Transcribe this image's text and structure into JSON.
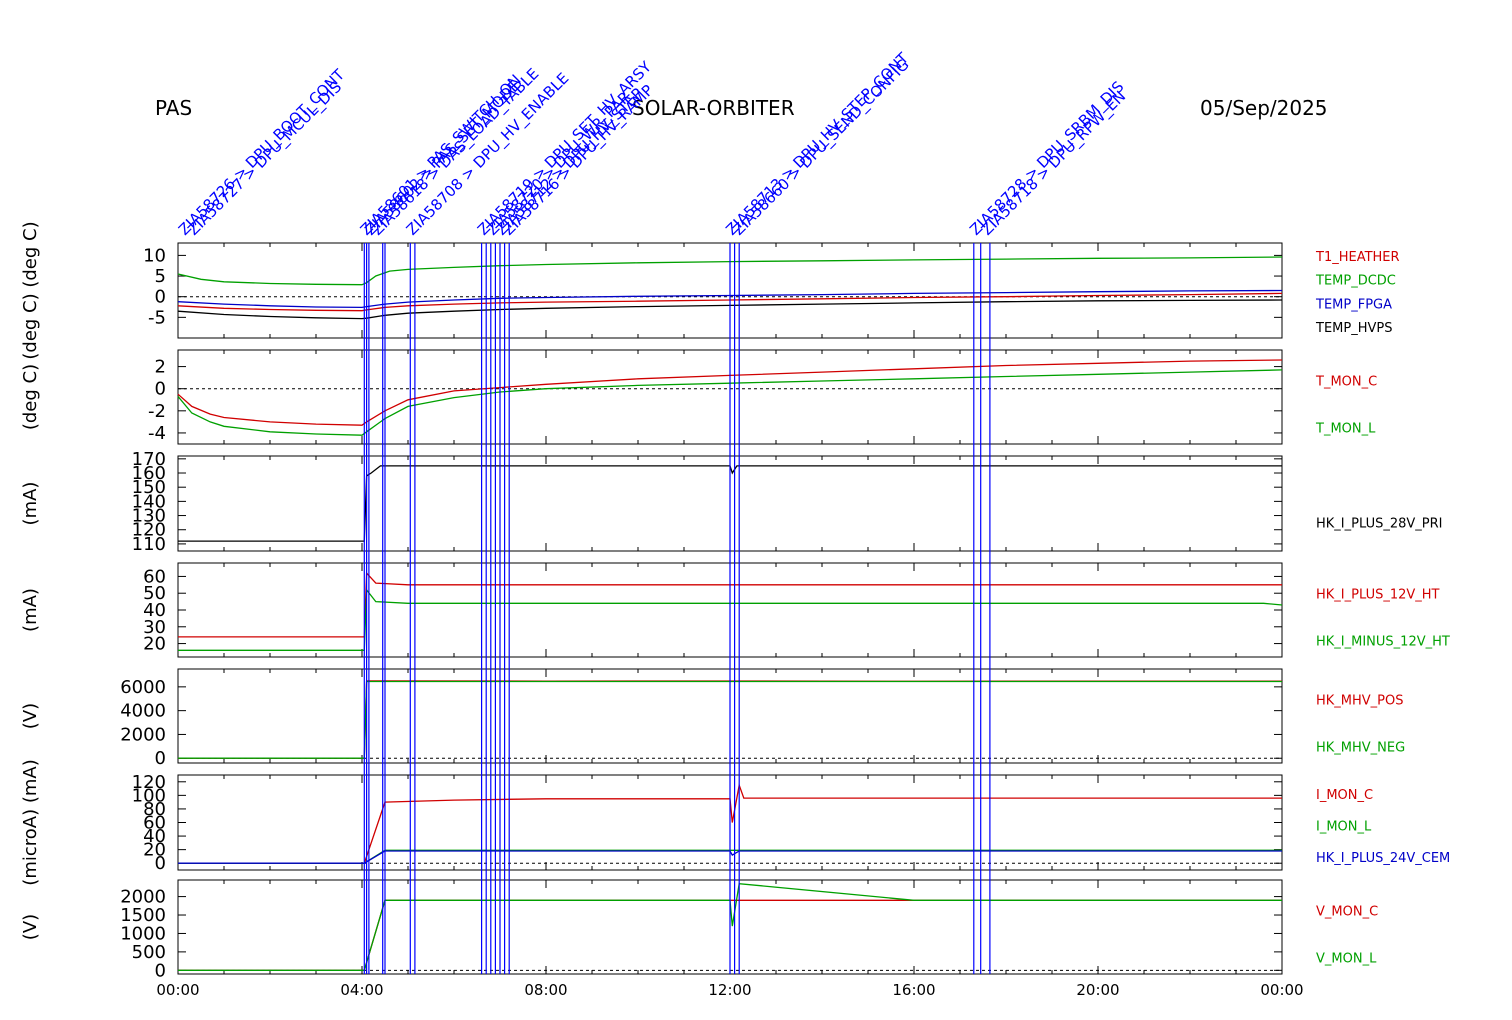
{
  "header": {
    "instrument": "PAS",
    "mission": "SOLAR-ORBITER",
    "date": "05/Sep/2025"
  },
  "colors": {
    "black": "#000000",
    "red": "#d00000",
    "green": "#00a000",
    "blue": "#0000c8",
    "event": "#0000ff"
  },
  "events": {
    "line_hours": [
      4.05,
      4.1,
      4.15,
      4.45,
      4.5,
      5.05,
      5.15,
      6.6,
      6.7,
      6.8,
      6.9,
      7.0,
      7.1,
      7.2,
      12.0,
      12.1,
      12.2,
      17.3,
      17.45,
      17.65
    ],
    "labels": [
      {
        "hour": 0.15,
        "text": "ZIA58726 > DPU_BOOT_CONT"
      },
      {
        "hour": 0.35,
        "text": "ZIA58727 > DPU_MCUL_DIS"
      },
      {
        "hour": 4.1,
        "text": "ZIA58601 > PAS_SWITCH_ON"
      },
      {
        "hour": 4.2,
        "text": "ZIA58602 > PAS_SET_MODE"
      },
      {
        "hour": 4.35,
        "text": "ZIA58618 > DAS_LOAD_TABLE"
      },
      {
        "hour": 5.1,
        "text": "ZIA58708 > DPU_HV_ENABLE"
      },
      {
        "hour": 6.65,
        "text": "ZIA58719 > DPU_SET_HV_ARSY"
      },
      {
        "hour": 6.85,
        "text": "ZIA58720 > DPU_WR_PAR"
      },
      {
        "hour": 7.05,
        "text": "ZIA58712 > DPU_HV_STEP"
      },
      {
        "hour": 7.2,
        "text": "ZIA58716 > DPU_HV_RAMP"
      },
      {
        "hour": 12.05,
        "text": "ZIA58713 > DPU_HV_STEP_CONT"
      },
      {
        "hour": 12.2,
        "text": "ZIA58660 > DPU_SEND_CONFIG"
      },
      {
        "hour": 17.35,
        "text": "ZIA58728 > DPU_SRBM_DIS"
      },
      {
        "hour": 17.6,
        "text": "ZIA58718 > DPU_RPW_EN"
      }
    ]
  },
  "x_axis": {
    "ticks": [
      "00:00",
      "04:00",
      "08:00",
      "12:00",
      "16:00",
      "20:00",
      "00:00"
    ]
  },
  "chart_data": [
    {
      "type": "line",
      "ylabel": "(deg C)  (deg C)",
      "ylim": [
        -10,
        13
      ],
      "yticks": [
        10,
        5,
        0,
        -5
      ],
      "zero_line": true,
      "x_range_hours": [
        0,
        24
      ],
      "series": [
        {
          "name": "T1_HEATHER",
          "color": "#d00000",
          "x": [
            0,
            1,
            2,
            3,
            4,
            4.1,
            4.5,
            5,
            6,
            7,
            8,
            10,
            12,
            14,
            16,
            18,
            20,
            22,
            24
          ],
          "y": [
            -2.2,
            -2.8,
            -3.1,
            -3.3,
            -3.4,
            -3.2,
            -2.6,
            -2.2,
            -1.8,
            -1.5,
            -1.3,
            -1.1,
            -0.8,
            -0.5,
            -0.2,
            0.0,
            0.3,
            0.5,
            0.8
          ]
        },
        {
          "name": "TEMP_DCDC",
          "color": "#00a000",
          "x": [
            0,
            0.5,
            1,
            2,
            3,
            4,
            4.1,
            4.3,
            4.6,
            5,
            6,
            7,
            8,
            10,
            12,
            14,
            16,
            18,
            20,
            22,
            24
          ],
          "y": [
            5.5,
            4.2,
            3.6,
            3.2,
            3.0,
            2.9,
            3.4,
            5.0,
            6.2,
            6.6,
            7.1,
            7.5,
            7.8,
            8.2,
            8.5,
            8.7,
            8.9,
            9.1,
            9.3,
            9.4,
            9.6
          ]
        },
        {
          "name": "TEMP_FPGA",
          "color": "#0000c8",
          "x": [
            0,
            1,
            2,
            3,
            4,
            4.1,
            4.5,
            5,
            6,
            7,
            8,
            10,
            12,
            14,
            16,
            18,
            20,
            22,
            24
          ],
          "y": [
            -1.2,
            -1.8,
            -2.2,
            -2.5,
            -2.6,
            -2.4,
            -1.8,
            -1.3,
            -0.8,
            -0.4,
            -0.2,
            0.1,
            0.3,
            0.5,
            0.8,
            1.0,
            1.2,
            1.4,
            1.5
          ]
        },
        {
          "name": "TEMP_HVPS",
          "color": "#000000",
          "x": [
            0,
            1,
            2,
            3,
            4,
            4.1,
            4.5,
            5,
            6,
            7,
            8,
            10,
            12,
            14,
            16,
            18,
            20,
            22,
            24
          ],
          "y": [
            -3.5,
            -4.3,
            -4.8,
            -5.1,
            -5.3,
            -5.2,
            -4.5,
            -4.0,
            -3.5,
            -3.1,
            -2.8,
            -2.4,
            -2.1,
            -1.8,
            -1.5,
            -1.2,
            -1.0,
            -0.9,
            -0.8
          ]
        }
      ]
    },
    {
      "type": "line",
      "ylabel": "(deg C)",
      "ylim": [
        -5,
        3.5
      ],
      "yticks": [
        2,
        0,
        -2,
        -4
      ],
      "zero_line": true,
      "x_range_hours": [
        0,
        24
      ],
      "series": [
        {
          "name": "T_MON_C",
          "color": "#d00000",
          "x": [
            0,
            0.3,
            0.7,
            1,
            2,
            3,
            4,
            4.1,
            4.5,
            5,
            6,
            7,
            8,
            10,
            12,
            14,
            16,
            18,
            20,
            22,
            24
          ],
          "y": [
            -0.5,
            -1.6,
            -2.3,
            -2.6,
            -3.0,
            -3.2,
            -3.3,
            -3.0,
            -2.0,
            -1.0,
            -0.2,
            0.1,
            0.4,
            0.9,
            1.2,
            1.5,
            1.8,
            2.1,
            2.3,
            2.5,
            2.6
          ]
        },
        {
          "name": "T_MON_L",
          "color": "#00a000",
          "x": [
            0,
            0.3,
            0.7,
            1,
            2,
            3,
            4,
            4.1,
            4.5,
            5,
            6,
            7,
            8,
            10,
            12,
            14,
            16,
            18,
            20,
            22,
            24
          ],
          "y": [
            -0.7,
            -2.2,
            -3.0,
            -3.4,
            -3.9,
            -4.1,
            -4.2,
            -3.9,
            -2.7,
            -1.6,
            -0.8,
            -0.3,
            0.0,
            0.3,
            0.5,
            0.7,
            0.9,
            1.1,
            1.3,
            1.5,
            1.7
          ]
        }
      ]
    },
    {
      "type": "line",
      "ylabel": "(mA)",
      "ylim": [
        105,
        172
      ],
      "yticks": [
        170,
        160,
        150,
        140,
        130,
        120,
        110
      ],
      "zero_line": false,
      "x_range_hours": [
        0,
        24
      ],
      "series": [
        {
          "name": "HK_I_PLUS_28V_PRI",
          "color": "#000000",
          "x": [
            0,
            4.05,
            4.1,
            4.2,
            4.4,
            4.6,
            8,
            12,
            12.05,
            12.15,
            16,
            20,
            24
          ],
          "y": [
            112,
            112,
            158,
            160,
            165,
            165,
            165,
            165,
            160,
            165,
            165,
            165,
            165
          ]
        }
      ]
    },
    {
      "type": "line",
      "ylabel": "(mA)",
      "ylim": [
        12,
        68
      ],
      "yticks": [
        60,
        50,
        40,
        30,
        20
      ],
      "zero_line": false,
      "x_range_hours": [
        0,
        24
      ],
      "series": [
        {
          "name": "HK_I_PLUS_12V_HT",
          "color": "#d00000",
          "x": [
            0,
            4.05,
            4.1,
            4.3,
            5,
            8,
            12,
            16,
            20,
            24
          ],
          "y": [
            24,
            24,
            62,
            56,
            55,
            55,
            55,
            55,
            55,
            55
          ]
        },
        {
          "name": "HK_I_MINUS_12V_HT",
          "color": "#00a000",
          "x": [
            0,
            4.05,
            4.1,
            4.3,
            5,
            8,
            12,
            16,
            20,
            23.6,
            24
          ],
          "y": [
            16,
            16,
            52,
            45,
            44,
            44,
            44,
            44,
            44,
            44,
            43
          ]
        }
      ]
    },
    {
      "type": "line",
      "ylabel": "(V)",
      "ylim": [
        -400,
        7500
      ],
      "yticks": [
        6000,
        4000,
        2000,
        0
      ],
      "zero_line": true,
      "x_range_hours": [
        0,
        24
      ],
      "series": [
        {
          "name": "HK_MHV_POS",
          "color": "#d00000",
          "x": [
            0,
            4.05,
            4.1,
            8,
            12,
            16,
            20,
            24
          ],
          "y": [
            0,
            0,
            6500,
            6480,
            6490,
            6470,
            6480,
            6480
          ]
        },
        {
          "name": "HK_MHV_NEG",
          "color": "#00a000",
          "x": [
            0,
            4.05,
            4.1,
            8,
            12,
            16,
            20,
            24
          ],
          "y": [
            0,
            0,
            6450,
            6450,
            6450,
            6450,
            6450,
            6450
          ]
        }
      ]
    },
    {
      "type": "line",
      "ylabel": "(microA)  (mA)",
      "ylim": [
        -10,
        130
      ],
      "yticks": [
        120,
        100,
        80,
        60,
        40,
        20,
        0
      ],
      "zero_line": true,
      "x_range_hours": [
        0,
        24
      ],
      "series": [
        {
          "name": "I_MON_C",
          "color": "#d00000",
          "x": [
            0,
            4.05,
            4.5,
            6,
            8,
            12,
            12.05,
            12.2,
            12.3,
            16,
            20,
            24
          ],
          "y": [
            0,
            0,
            90,
            93,
            95,
            95,
            60,
            115,
            96,
            96,
            96,
            96
          ]
        },
        {
          "name": "I_MON_L",
          "color": "#00a000",
          "x": [
            0,
            4.05,
            4.5,
            8,
            12,
            16,
            20,
            24
          ],
          "y": [
            0,
            0,
            19,
            19,
            19,
            19,
            19,
            19
          ]
        },
        {
          "name": "HK_I_PLUS_24V_CEM",
          "color": "#0000c8",
          "x": [
            0,
            4.05,
            4.5,
            8,
            12,
            12.05,
            12.2,
            16,
            20,
            24
          ],
          "y": [
            0,
            0,
            18,
            18,
            18,
            12,
            18,
            18,
            18,
            18
          ]
        }
      ]
    },
    {
      "type": "line",
      "ylabel": "(V)",
      "ylim": [
        -100,
        2450
      ],
      "yticks": [
        2000,
        1500,
        1000,
        500,
        0
      ],
      "zero_line": true,
      "x_range_hours": [
        0,
        24
      ],
      "series": [
        {
          "name": "V_MON_C",
          "color": "#d00000",
          "x": [
            0,
            4.05,
            4.5,
            8,
            12,
            16,
            20,
            24
          ],
          "y": [
            0,
            0,
            1900,
            1900,
            1900,
            1900,
            1900,
            1900
          ]
        },
        {
          "name": "V_MON_L",
          "color": "#00a000",
          "x": [
            0,
            4.05,
            4.5,
            8,
            12,
            12.05,
            12.2,
            16,
            20,
            24
          ],
          "y": [
            0,
            0,
            1900,
            1900,
            1900,
            1200,
            2350,
            1900,
            1900,
            1900
          ]
        }
      ]
    }
  ]
}
